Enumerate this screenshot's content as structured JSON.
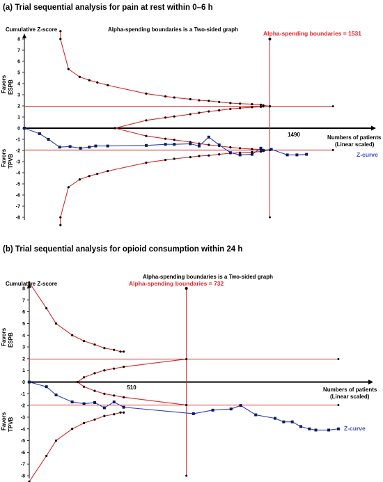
{
  "chart_data": [
    {
      "type": "line",
      "title": "(a) Trial sequential analysis for pain at rest within 0–6 h",
      "subtitle": "Alpha-spending boundaries is a Two-sided graph",
      "ylabel": "Cumulative Z-score",
      "xlabel_line1": "Numbers of patients",
      "xlabel_line2": "(Linear scaled)",
      "favors_top": [
        "Favors",
        "ESPB"
      ],
      "favors_bottom": [
        "Favors",
        "TPVB"
      ],
      "ylim": [
        -8,
        8
      ],
      "xlim": [
        0,
        2150
      ],
      "yticks": [
        8,
        7,
        6,
        5,
        4,
        3,
        2,
        1,
        0,
        -1,
        -2,
        -3,
        -4,
        -5,
        -6,
        -7,
        -8
      ],
      "x_marker_label": "1490",
      "x_marker_value": 1490,
      "ris_label": "Alpha-spending boundaries = 1531",
      "ris_value": 1531,
      "z_threshold": 1.96,
      "threshold_end_x": 1925,
      "zcurve_label": "Z-curve",
      "upper_boundary": {
        "x": [
          225,
          225,
          275,
          345,
          405,
          455,
          520,
          760,
          880,
          935,
          1035,
          1090,
          1150,
          1215,
          1285,
          1345,
          1420,
          1475,
          1490,
          1531
        ],
        "y": [
          8.7,
          8.0,
          5.3,
          4.6,
          4.3,
          4.1,
          3.85,
          3.1,
          2.85,
          2.75,
          2.6,
          2.5,
          2.45,
          2.35,
          2.25,
          2.2,
          2.15,
          2.1,
          2.05,
          1.96
        ]
      },
      "lower_boundary": {
        "x": [
          225,
          225,
          275,
          345,
          405,
          455,
          520,
          760,
          880,
          935,
          1035,
          1090,
          1150,
          1215,
          1285,
          1345,
          1420,
          1475,
          1490,
          1531
        ],
        "y": [
          -8.7,
          -8.0,
          -5.3,
          -4.6,
          -4.3,
          -4.1,
          -3.85,
          -3.1,
          -2.85,
          -2.75,
          -2.6,
          -2.5,
          -2.45,
          -2.35,
          -2.25,
          -2.2,
          -2.15,
          -2.1,
          -2.05,
          -1.96
        ]
      },
      "futility_upper": {
        "x": [
          565,
          760,
          880,
          935,
          1035,
          1090,
          1150,
          1215,
          1285,
          1345,
          1420,
          1475,
          1490,
          1531
        ],
        "y": [
          0,
          0.7,
          0.95,
          1.05,
          1.25,
          1.38,
          1.5,
          1.6,
          1.72,
          1.8,
          1.88,
          1.92,
          1.95,
          1.96
        ]
      },
      "futility_lower": {
        "x": [
          565,
          760,
          880,
          935,
          1035,
          1090,
          1150,
          1215,
          1285,
          1345,
          1420,
          1475,
          1490,
          1531
        ],
        "y": [
          0,
          -0.7,
          -0.95,
          -1.05,
          -1.25,
          -1.38,
          -1.5,
          -1.6,
          -1.72,
          -1.8,
          -1.88,
          -1.92,
          -1.95,
          -1.96
        ]
      },
      "z_curve": {
        "x": [
          0,
          95,
          150,
          220,
          285,
          350,
          405,
          445,
          520,
          760,
          880,
          935,
          1035,
          1090,
          1150,
          1215,
          1285,
          1345,
          1420,
          1475,
          1490,
          1540,
          1640,
          1700,
          1760
        ],
        "y": [
          0,
          -0.5,
          -1.0,
          -1.7,
          -1.65,
          -1.8,
          -1.7,
          -1.6,
          -1.6,
          -1.55,
          -1.45,
          -1.45,
          -1.4,
          -1.6,
          -0.8,
          -1.5,
          -2.2,
          -2.4,
          -2.35,
          -1.8,
          -2.0,
          -1.9,
          -2.4,
          -2.4,
          -2.35
        ]
      }
    },
    {
      "type": "line",
      "title": "(b) Trial sequential analysis for opioid consumption within 24 h",
      "subtitle": "Alpha-spending boundaries is a Two-sided graph",
      "ylabel": "Cumulative Z-score",
      "xlabel_line1": "Numbers of patients",
      "xlabel_line2": "(Linear scaled)",
      "favors_top": [
        "Favors",
        "ESPB"
      ],
      "favors_bottom": [
        "Favors",
        "TPVB"
      ],
      "ylim": [
        -8,
        8
      ],
      "xlim": [
        0,
        1570
      ],
      "yticks": [
        8,
        7,
        6,
        5,
        4,
        3,
        2,
        1,
        0,
        -1,
        -2,
        -3,
        -4,
        -5,
        -6,
        -7,
        -8
      ],
      "x_marker_label": "510",
      "x_marker_value": 510,
      "ris_label": "Alpha-spending boundaries = 732",
      "ris_value": 732,
      "z_threshold": 1.96,
      "threshold_end_x": 1440,
      "zcurve_label": "Z-curve",
      "upper_boundary": {
        "x": [
          0,
          80,
          125,
          200,
          255,
          305,
          350,
          395,
          425,
          440
        ],
        "y": [
          8.5,
          6.3,
          5.0,
          4.0,
          3.5,
          3.2,
          2.9,
          2.75,
          2.6,
          2.6
        ]
      },
      "lower_boundary": {
        "x": [
          0,
          80,
          125,
          200,
          255,
          305,
          350,
          395,
          425,
          440
        ],
        "y": [
          -8.5,
          -6.3,
          -5.0,
          -4.0,
          -3.5,
          -3.2,
          -2.9,
          -2.75,
          -2.6,
          -2.6
        ]
      },
      "futility_upper": {
        "x": [
          225,
          255,
          305,
          350,
          395,
          440,
          732
        ],
        "y": [
          0,
          0.4,
          0.75,
          1.0,
          1.15,
          1.3,
          1.96
        ]
      },
      "futility_lower": {
        "x": [
          225,
          255,
          305,
          350,
          395,
          440,
          732
        ],
        "y": [
          0,
          -0.4,
          -0.75,
          -1.0,
          -1.15,
          -1.3,
          -1.96
        ]
      },
      "z_curve": {
        "x": [
          0,
          80,
          125,
          200,
          255,
          305,
          350,
          395,
          440,
          765,
          855,
          940,
          985,
          1055,
          1145,
          1185,
          1225,
          1265,
          1305,
          1335,
          1395,
          1440
        ],
        "y": [
          0,
          -0.4,
          -1.1,
          -1.7,
          -1.85,
          -1.75,
          -2.2,
          -1.7,
          -2.15,
          -2.7,
          -2.4,
          -2.3,
          -2.0,
          -2.8,
          -3.1,
          -3.4,
          -3.4,
          -3.8,
          -4.0,
          -4.1,
          -4.1,
          -4.0
        ]
      }
    }
  ]
}
